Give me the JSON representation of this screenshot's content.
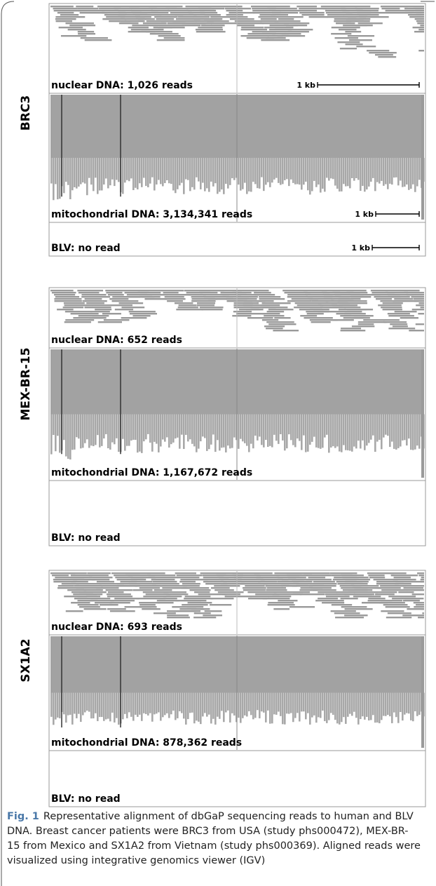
{
  "panels": [
    {
      "sample": "BRC3",
      "tracks": [
        {
          "label": "nuclear DNA: 1,026 reads",
          "scale": "1 kb"
        },
        {
          "label": "mitochondrial DNA: 3,134,341 reads",
          "scale": "1 kb"
        },
        {
          "label": "BLV: no read",
          "scale": "1 kb"
        }
      ]
    },
    {
      "sample": "MEX-BR-15",
      "tracks": [
        {
          "label": "nuclear DNA: 652 reads"
        },
        {
          "label": "mitochondrial DNA: 1,167,672 reads"
        },
        {
          "label": "BLV: no read"
        }
      ]
    },
    {
      "sample": "SX1A2",
      "tracks": [
        {
          "label": "nuclear DNA: 693 reads"
        },
        {
          "label": "mitochondrial DNA: 878,362 reads"
        },
        {
          "label": "BLV: no read"
        }
      ]
    }
  ],
  "caption": {
    "label": "Fig. 1",
    "text": "Representative alignment of dbGaP sequencing reads to human and BLV DNA. Breast cancer patients were BRC3 from USA (study phs000472), MEX-BR-15 from Mexico and SX1A2 from Vietnam (study phs000369). Aligned reads were visualized using integrative genomics viewer (IGV)"
  }
}
